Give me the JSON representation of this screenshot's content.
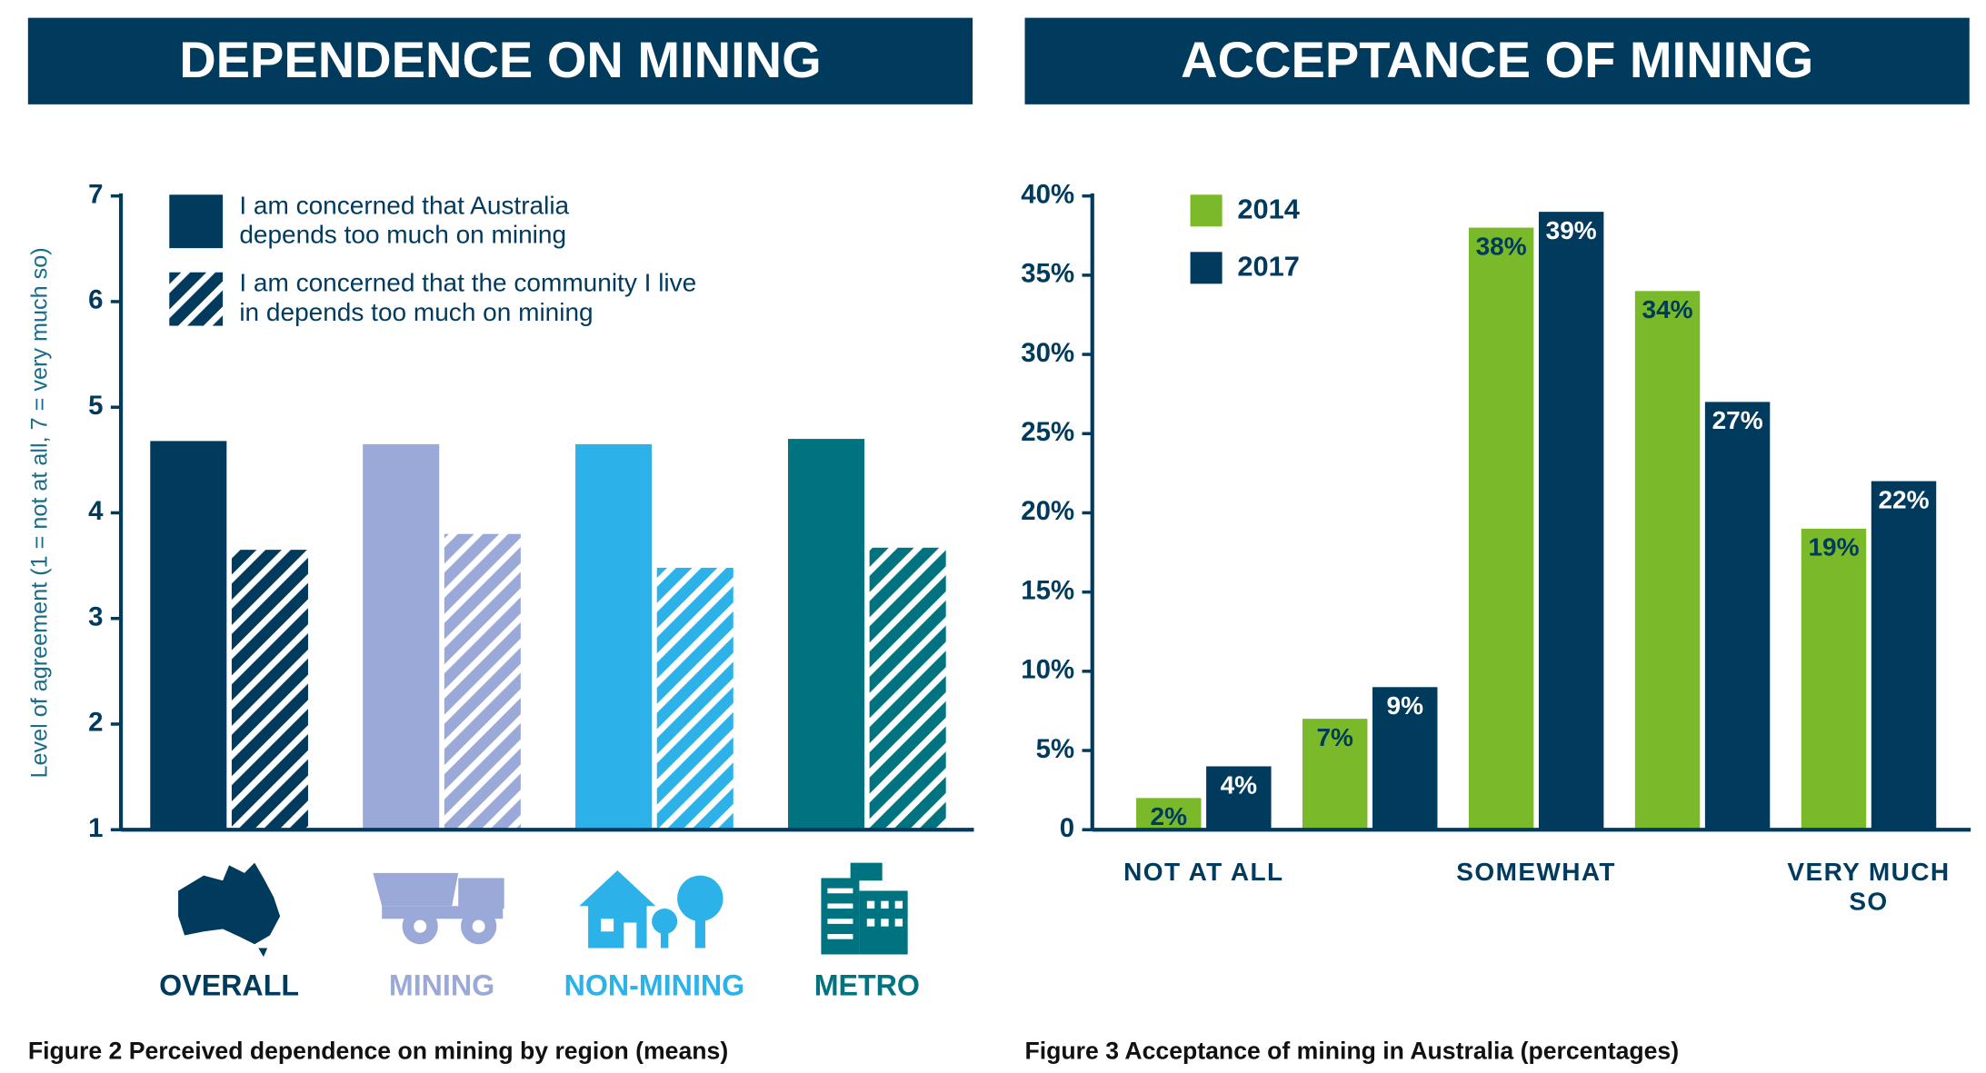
{
  "chart_data": [
    {
      "type": "bar",
      "header": "DEPENDENCE ON MINING",
      "caption": "Figure 2 Perceived dependence on mining by region (means)",
      "ylabel": "Level of agreement (1 = not at all, 7 = very much so)",
      "categories": [
        "OVERALL",
        "MINING",
        "NON-MINING",
        "METRO"
      ],
      "category_colors": [
        "#003a5d",
        "#9aa9d8",
        "#2cb2e8",
        "#007380"
      ],
      "series": [
        {
          "name": "I am concerned that Australia depends too much on mining",
          "color": "#003a5d",
          "values": [
            4.68,
            4.65,
            4.65,
            4.7
          ]
        },
        {
          "name": "I am concerned that the community I live in depends too much on mining",
          "color": "#003a5d",
          "hatch": true,
          "values": [
            3.65,
            3.8,
            3.48,
            3.67
          ]
        }
      ],
      "ylim": [
        1,
        7
      ],
      "yticks": [
        1,
        2,
        3,
        4,
        5,
        6,
        7
      ]
    },
    {
      "type": "bar",
      "header": "ACCEPTANCE OF MINING",
      "caption": "Figure 3 Acceptance of mining in Australia (percentages)",
      "categories": [
        "NOT AT ALL",
        null,
        "SOMEWHAT",
        null,
        "VERY MUCH SO"
      ],
      "series": [
        {
          "name": "2014",
          "color": "#7ab929",
          "values": [
            2,
            7,
            38,
            34,
            19
          ],
          "value_labels": [
            "2%",
            "7%",
            "38%",
            "34%",
            "19%"
          ]
        },
        {
          "name": "2017",
          "color": "#003a5d",
          "values": [
            4,
            9,
            39,
            27,
            22
          ],
          "value_labels": [
            "4%",
            "9%",
            "39%",
            "27%",
            "22%"
          ]
        }
      ],
      "ylim": [
        0,
        40
      ],
      "yticks": [
        0,
        {
          "value": 5,
          "label": "5%"
        },
        {
          "value": 10,
          "label": "10%"
        },
        {
          "value": 15,
          "label": "15%"
        },
        {
          "value": 20,
          "label": "20%"
        },
        {
          "value": 25,
          "label": "25%"
        },
        {
          "value": 30,
          "label": "30%"
        },
        {
          "value": 35,
          "label": "35%"
        },
        {
          "value": 40,
          "label": "40%"
        }
      ]
    }
  ]
}
